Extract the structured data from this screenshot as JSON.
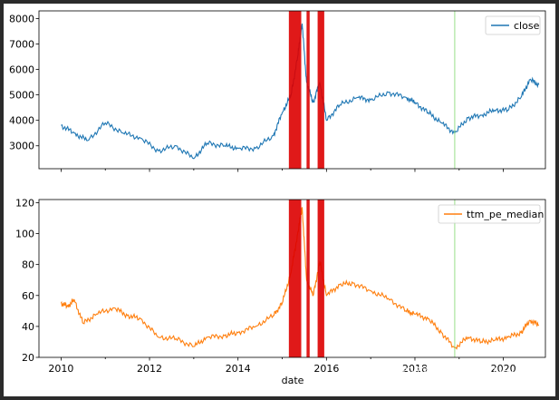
{
  "watermark": "知乎 @Keep Walking",
  "chart_data": [
    {
      "type": "line",
      "series": [
        {
          "name": "close",
          "color": "#1f77b4"
        }
      ],
      "x": [
        2010.0,
        2010.3,
        2010.6,
        2011.0,
        2011.4,
        2011.8,
        2012.2,
        2012.6,
        2013.0,
        2013.3,
        2013.7,
        2014.0,
        2014.4,
        2014.8,
        2015.0,
        2015.2,
        2015.35,
        2015.45,
        2015.55,
        2015.7,
        2015.85,
        2016.0,
        2016.3,
        2016.7,
        2017.0,
        2017.4,
        2017.8,
        2018.0,
        2018.3,
        2018.6,
        2018.9,
        2019.2,
        2019.5,
        2019.8,
        2020.1,
        2020.4,
        2020.6,
        2020.8
      ],
      "y": [
        3800,
        3500,
        3200,
        3900,
        3500,
        3300,
        2800,
        3000,
        2500,
        3100,
        3000,
        2900,
        2900,
        3400,
        4300,
        5000,
        6500,
        7800,
        5500,
        4700,
        5500,
        4000,
        4600,
        4900,
        4800,
        5100,
        4900,
        4700,
        4300,
        3900,
        3500,
        4100,
        4200,
        4400,
        4400,
        4900,
        5600,
        5400
      ],
      "xlim": [
        2009.5,
        2020.95
      ],
      "ylim": [
        2100,
        8300
      ],
      "yticks": [
        3000,
        4000,
        5000,
        6000,
        7000,
        8000
      ],
      "xticks": [
        2010,
        2012,
        2014,
        2016,
        2018,
        2020
      ],
      "legend": "top-right",
      "grid": false,
      "highlight_spans": [
        [
          2015.15,
          2015.43
        ],
        [
          2015.55,
          2015.62
        ],
        [
          2015.8,
          2015.95
        ]
      ],
      "highlight_color": "#dd0000",
      "vertical_marker": {
        "x": 2018.9,
        "color": "#98df8a"
      }
    },
    {
      "type": "line",
      "series": [
        {
          "name": "ttm_pe_median",
          "color": "#ff7f0e"
        }
      ],
      "x": [
        2010.0,
        2010.15,
        2010.3,
        2010.5,
        2010.8,
        2011.2,
        2011.5,
        2011.8,
        2012.2,
        2012.6,
        2013.0,
        2013.3,
        2013.7,
        2014.0,
        2014.4,
        2014.8,
        2015.0,
        2015.2,
        2015.35,
        2015.45,
        2015.55,
        2015.7,
        2015.85,
        2016.0,
        2016.3,
        2016.6,
        2017.0,
        2017.4,
        2017.8,
        2018.0,
        2018.3,
        2018.6,
        2018.9,
        2019.2,
        2019.5,
        2019.8,
        2020.1,
        2020.4,
        2020.6,
        2020.8
      ],
      "y": [
        55,
        53,
        57,
        42,
        48,
        52,
        47,
        45,
        33,
        32,
        27,
        33,
        34,
        36,
        40,
        47,
        55,
        75,
        100,
        117,
        70,
        60,
        82,
        60,
        67,
        68,
        63,
        58,
        50,
        48,
        45,
        36,
        26,
        33,
        30,
        31,
        33,
        36,
        44,
        41
      ],
      "xlim": [
        2009.5,
        2020.95
      ],
      "ylim": [
        20,
        122
      ],
      "yticks": [
        20,
        40,
        60,
        80,
        100,
        120
      ],
      "xticks": [
        2010,
        2012,
        2014,
        2016,
        2018,
        2020
      ],
      "xtick_labels": [
        "2010",
        "2012",
        "2014",
        "2016",
        "2018",
        "2020"
      ],
      "xlabel": "date",
      "legend": "top-right",
      "grid": false,
      "highlight_spans": [
        [
          2015.15,
          2015.43
        ],
        [
          2015.55,
          2015.62
        ],
        [
          2015.8,
          2015.95
        ]
      ],
      "highlight_color": "#dd0000",
      "vertical_marker": {
        "x": 2018.9,
        "color": "#98df8a"
      }
    }
  ]
}
